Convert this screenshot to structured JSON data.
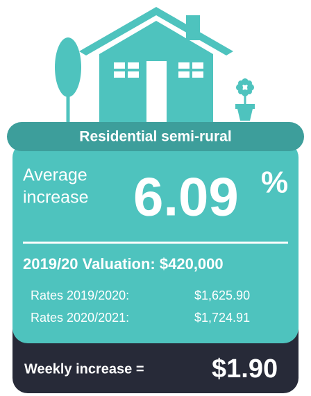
{
  "card": {
    "title": "Residential semi-rural",
    "average_label_line1": "Average",
    "average_label_line2": "increase",
    "increase_value": "6.09",
    "increase_unit": "%",
    "valuation": "2019/20 Valuation: $420,000",
    "rates": [
      {
        "label": "Rates 2019/2020:",
        "value": "$1,625.90"
      },
      {
        "label": "Rates 2020/2021:",
        "value": "$1,724.91"
      }
    ],
    "weekly_label": "Weekly increase =",
    "weekly_value": "$1.90"
  }
}
